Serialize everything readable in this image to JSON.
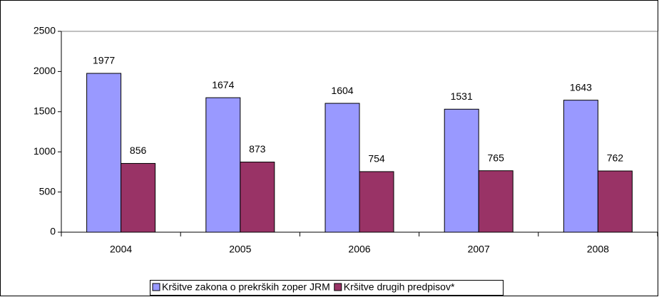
{
  "chart_data": {
    "type": "bar",
    "categories": [
      "2004",
      "2005",
      "2006",
      "2007",
      "2008"
    ],
    "series": [
      {
        "name": "Kršitve zakona o prekrških zoper JRM",
        "color": "#9999ff",
        "values": [
          1977,
          1674,
          1604,
          1531,
          1643
        ]
      },
      {
        "name": "Kršitve drugih predpisov*",
        "color": "#993366",
        "values": [
          856,
          873,
          754,
          765,
          762
        ]
      }
    ],
    "ylim": [
      0,
      2500
    ],
    "yticks": [
      0,
      500,
      1000,
      1500,
      2000,
      2500
    ],
    "grid": false,
    "legend": "bottom"
  }
}
